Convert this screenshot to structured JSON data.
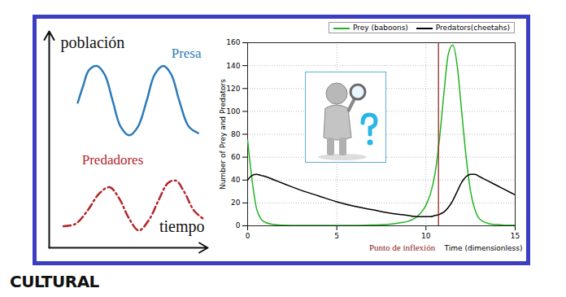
{
  "logo": "CULTURAL",
  "chart_data": [
    {
      "type": "line",
      "xlabel": "tiempo",
      "ylabel": "población",
      "tick_labels": false,
      "xlim": [
        0,
        100
      ],
      "ylim": [
        0,
        100
      ],
      "series": [
        {
          "name": "Presa",
          "color": "#2b7bb9",
          "line_style": "solid",
          "x": [
            18,
            21.5,
            25,
            30,
            35,
            40,
            45,
            50.5,
            56,
            61.5,
            66.5,
            72,
            77,
            82,
            88,
            94
          ],
          "values": [
            67,
            75,
            82,
            84,
            80,
            68,
            56,
            52,
            56,
            68,
            80,
            84,
            80,
            68,
            56,
            53
          ]
        },
        {
          "name": "Predadores",
          "color": "#b3262b",
          "line_style": "dashdot",
          "x": [
            9,
            16.5,
            24,
            31.5,
            38,
            44,
            50,
            56.5,
            63,
            69,
            75,
            80,
            85,
            91.5,
            98
          ],
          "values": [
            10,
            11,
            17,
            25,
            28,
            23,
            14,
            8,
            13,
            22,
            30,
            31,
            26,
            17,
            13
          ]
        }
      ]
    },
    {
      "type": "line",
      "xlabel": "Time (dimensionless)",
      "ylabel": "Number of Prey and Predators",
      "x": [
        0,
        0.25,
        0.5,
        0.75,
        1,
        1.5,
        2,
        3,
        4,
        5,
        6,
        7,
        8,
        8.5,
        9,
        9.5,
        10,
        10.25,
        10.5,
        10.75,
        11,
        11.25,
        11.5,
        11.75,
        12,
        12.25,
        12.5,
        12.75,
        13,
        13.5,
        14,
        14.5,
        15
      ],
      "xlim": [
        0,
        15
      ],
      "xticks": [
        0,
        5,
        10,
        15
      ],
      "ylim": [
        0,
        160
      ],
      "yticks": [
        0,
        20,
        40,
        60,
        80,
        100,
        120,
        140,
        160
      ],
      "grid": true,
      "legend": "upper right",
      "series": [
        {
          "name": "Prey (baboons)",
          "color": "#22b422",
          "values": [
            75,
            40,
            15,
            6,
            3,
            1,
            0.5,
            0.3,
            0.3,
            0.3,
            0.4,
            0.7,
            1.5,
            2.5,
            4,
            8,
            18,
            28,
            45,
            75,
            115,
            150,
            158,
            140,
            100,
            60,
            30,
            14,
            6,
            2,
            1,
            0.5,
            0.5
          ]
        },
        {
          "name": "Predators(cheetahs)",
          "color": "#000000",
          "values": [
            40,
            44,
            45,
            44,
            43,
            40,
            37,
            31,
            26,
            21,
            17,
            14,
            11,
            10,
            9,
            8,
            8,
            8,
            9,
            10,
            12,
            16,
            22,
            30,
            38,
            43,
            45,
            45,
            43,
            39,
            35,
            31,
            27
          ]
        }
      ],
      "annotations": [
        {
          "text": "Punto de inflexión",
          "x": 10.7,
          "color": "#8b1a1a"
        }
      ]
    }
  ]
}
